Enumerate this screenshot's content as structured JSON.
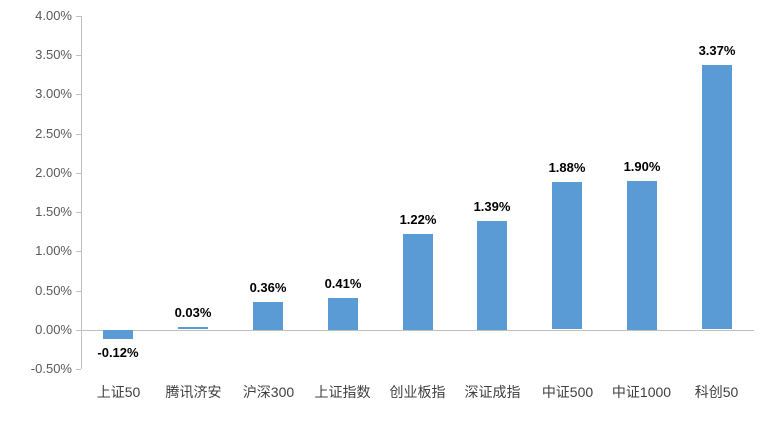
{
  "chart_data": {
    "type": "bar",
    "categories": [
      "上证50",
      "腾讯济安",
      "沪深300",
      "上证指数",
      "创业板指",
      "深证成指",
      "中证500",
      "中证1000",
      "科创50"
    ],
    "values": [
      -0.12,
      0.03,
      0.36,
      0.41,
      1.22,
      1.39,
      1.88,
      1.9,
      3.37
    ],
    "value_labels": [
      "-0.12%",
      "0.03%",
      "0.36%",
      "0.41%",
      "1.22%",
      "1.39%",
      "1.88%",
      "1.90%",
      "3.37%"
    ],
    "y_ticks": [
      4.0,
      3.5,
      3.0,
      2.5,
      2.0,
      1.5,
      1.0,
      0.5,
      0.0,
      -0.5
    ],
    "y_tick_labels": [
      "4.00%",
      "3.50%",
      "3.00%",
      "2.50%",
      "2.00%",
      "1.50%",
      "1.00%",
      "0.50%",
      "0.00%",
      "-0.50%"
    ],
    "ylim": [
      -0.5,
      4.0
    ],
    "title": "",
    "xlabel": "",
    "ylabel": "",
    "grid": false,
    "legend": false,
    "colors": {
      "bar": "#5B9BD5",
      "axis_line": "#BFBFBF",
      "y_tick_text": "#595959",
      "x_tick_text": "#404040",
      "value_label_text": "#000000",
      "background": "#FFFFFF"
    }
  }
}
